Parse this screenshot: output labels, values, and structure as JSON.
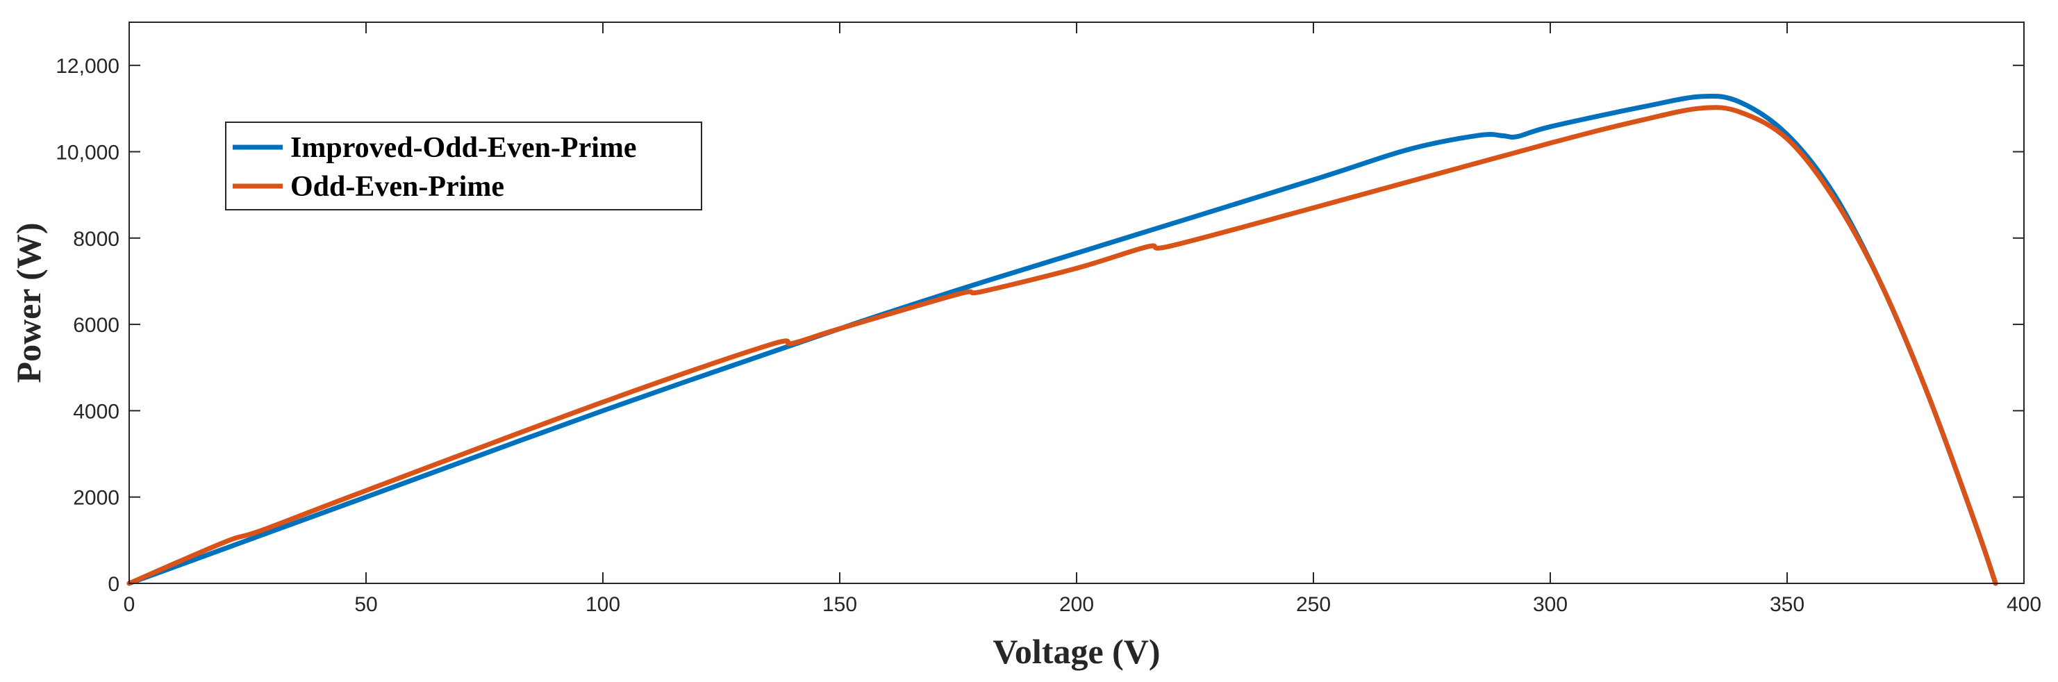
{
  "chart_data": {
    "type": "line",
    "title": "",
    "xlabel": "Voltage (V)",
    "ylabel": "Power (W)",
    "xlim": [
      0,
      400
    ],
    "ylim": [
      0,
      13000
    ],
    "grid": false,
    "legend_position": "top-left",
    "x_ticks": [
      0,
      50,
      100,
      150,
      200,
      250,
      300,
      350,
      400
    ],
    "x_tick_labels": [
      "0",
      "50",
      "100",
      "150",
      "200",
      "250",
      "300",
      "350",
      "400"
    ],
    "y_ticks": [
      0,
      2000,
      4000,
      6000,
      8000,
      10000,
      12000
    ],
    "y_tick_labels": [
      "0",
      "2000",
      "4000",
      "6000",
      "8000",
      "10,000",
      "12,000"
    ],
    "series": [
      {
        "name": "Improved-Odd-Even-Prime",
        "color": "#0072BD",
        "x": [
          0,
          20,
          50,
          100,
          150,
          175,
          200,
          250,
          270,
          285,
          290,
          293,
          300,
          320,
          332,
          340,
          350,
          360,
          370,
          380,
          390,
          394
        ],
        "y": [
          0,
          800,
          2000,
          4000,
          5900,
          6800,
          7650,
          9350,
          10050,
          10380,
          10370,
          10350,
          10580,
          11050,
          11280,
          11150,
          10400,
          9000,
          6900,
          4300,
          1300,
          0
        ]
      },
      {
        "name": "Odd-Even-Prime",
        "color": "#D95319",
        "x": [
          0,
          20,
          28,
          50,
          100,
          135,
          140,
          150,
          175,
          180,
          200,
          215,
          220,
          250,
          300,
          320,
          332,
          340,
          350,
          360,
          370,
          380,
          390,
          394
        ],
        "y": [
          0,
          950,
          1230,
          2150,
          4200,
          5520,
          5560,
          5900,
          6700,
          6760,
          7300,
          7800,
          7820,
          8700,
          10200,
          10750,
          11010,
          10920,
          10300,
          8900,
          6900,
          4300,
          1300,
          0
        ]
      }
    ]
  }
}
